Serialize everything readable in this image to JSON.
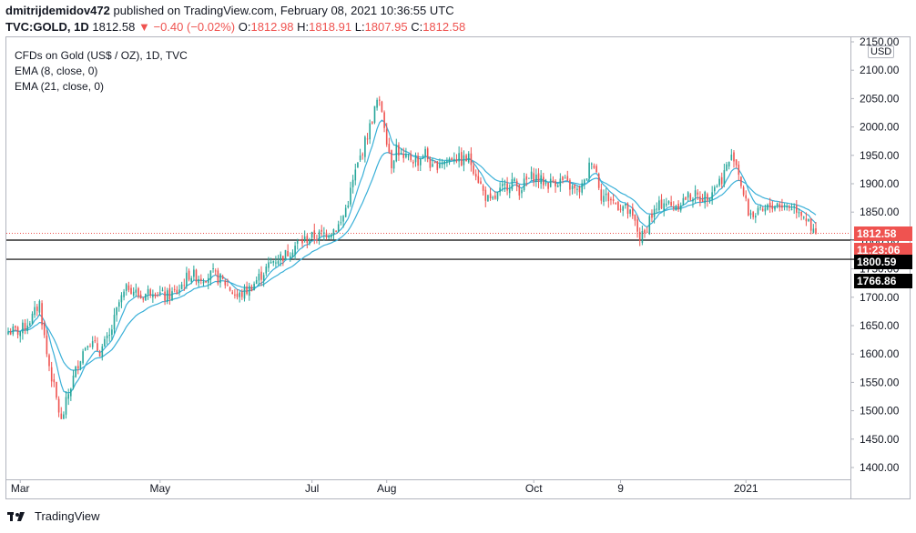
{
  "header": {
    "author": "dmitrijdemidov472",
    "published_text": "published on TradingView.com, February 08, 2021 10:36:55 UTC",
    "symbol": "TVC:GOLD, 1D",
    "last": "1812.58",
    "change_arrow": "▼",
    "change": "−0.40 (−0.02%)",
    "o_label": "O:",
    "o_value": "1812.98",
    "h_label": "H:",
    "h_value": "1818.91",
    "l_label": "L:",
    "l_value": "1807.95",
    "c_label": "C:",
    "c_value": "1812.58"
  },
  "legend": {
    "title": "CFDs on Gold (US$ / OZ), 1D, TVC",
    "ema8": "EMA (8, close, 0)",
    "ema21": "EMA (21, close, 0)"
  },
  "currency": "USD",
  "footer": {
    "brand": "TradingView"
  },
  "price_tags": {
    "last": "1812.58",
    "countdown": "11:23:06",
    "level_top": "1800.59",
    "level_bottom": "1766.86"
  },
  "colors": {
    "up": "#26a69a",
    "down": "#ef5350",
    "ema8": "#3ab0d8",
    "ema21": "#3ab0d8",
    "level": "#000000"
  },
  "chart_data": {
    "type": "candlestick",
    "title": "CFDs on Gold (US$ / OZ), 1D, TVC",
    "ylabel": "USD",
    "ylim": [
      1383,
      2155
    ],
    "y_ticks": [
      "2150.00",
      "2100.00",
      "2050.00",
      "2000.00",
      "1950.00",
      "1900.00",
      "1850.00",
      "1800.00",
      "1750.00",
      "1700.00",
      "1650.00",
      "1600.00",
      "1550.00",
      "1500.00",
      "1450.00",
      "1400.00"
    ],
    "x_ticks": [
      "Mar",
      "May",
      "Jul",
      "Aug",
      "Oct",
      "9",
      "2021"
    ],
    "x_tick_days": [
      5,
      63,
      126,
      157,
      218,
      254,
      306
    ],
    "horizontal_levels": [
      1800.59,
      1766.86
    ],
    "last_price": 1812.58,
    "anchors": [
      [
        0,
        1640
      ],
      [
        5,
        1640
      ],
      [
        10,
        1665
      ],
      [
        13,
        1690
      ],
      [
        16,
        1600
      ],
      [
        19,
        1540
      ],
      [
        22,
        1480
      ],
      [
        25,
        1530
      ],
      [
        29,
        1585
      ],
      [
        33,
        1625
      ],
      [
        38,
        1605
      ],
      [
        42,
        1630
      ],
      [
        46,
        1690
      ],
      [
        50,
        1720
      ],
      [
        55,
        1700
      ],
      [
        60,
        1715
      ],
      [
        65,
        1700
      ],
      [
        70,
        1710
      ],
      [
        75,
        1740
      ],
      [
        80,
        1735
      ],
      [
        85,
        1740
      ],
      [
        90,
        1725
      ],
      [
        95,
        1700
      ],
      [
        100,
        1715
      ],
      [
        105,
        1740
      ],
      [
        110,
        1765
      ],
      [
        115,
        1775
      ],
      [
        120,
        1795
      ],
      [
        125,
        1805
      ],
      [
        130,
        1810
      ],
      [
        135,
        1820
      ],
      [
        138,
        1830
      ],
      [
        141,
        1870
      ],
      [
        144,
        1920
      ],
      [
        147,
        1960
      ],
      [
        150,
        2000
      ],
      [
        153,
        2045
      ],
      [
        155,
        2030
      ],
      [
        157,
        1980
      ],
      [
        159,
        1935
      ],
      [
        161,
        1965
      ],
      [
        164,
        1940
      ],
      [
        167,
        1945
      ],
      [
        170,
        1940
      ],
      [
        173,
        1955
      ],
      [
        176,
        1925
      ],
      [
        179,
        1940
      ],
      [
        182,
        1940
      ],
      [
        185,
        1950
      ],
      [
        188,
        1940
      ],
      [
        191,
        1945
      ],
      [
        194,
        1920
      ],
      [
        197,
        1885
      ],
      [
        200,
        1865
      ],
      [
        203,
        1880
      ],
      [
        206,
        1895
      ],
      [
        209,
        1905
      ],
      [
        212,
        1890
      ],
      [
        215,
        1905
      ],
      [
        218,
        1915
      ],
      [
        221,
        1905
      ],
      [
        224,
        1900
      ],
      [
        227,
        1905
      ],
      [
        230,
        1905
      ],
      [
        233,
        1895
      ],
      [
        236,
        1885
      ],
      [
        239,
        1900
      ],
      [
        242,
        1945
      ],
      [
        244,
        1920
      ],
      [
        246,
        1880
      ],
      [
        249,
        1875
      ],
      [
        252,
        1865
      ],
      [
        255,
        1860
      ],
      [
        258,
        1845
      ],
      [
        260,
        1830
      ],
      [
        262,
        1805
      ],
      [
        264,
        1810
      ],
      [
        266,
        1840
      ],
      [
        269,
        1855
      ],
      [
        272,
        1870
      ],
      [
        275,
        1860
      ],
      [
        278,
        1865
      ],
      [
        281,
        1875
      ],
      [
        284,
        1880
      ],
      [
        287,
        1875
      ],
      [
        290,
        1880
      ],
      [
        293,
        1895
      ],
      [
        296,
        1910
      ],
      [
        299,
        1940
      ],
      [
        301,
        1950
      ],
      [
        303,
        1920
      ],
      [
        305,
        1880
      ],
      [
        307,
        1850
      ],
      [
        310,
        1845
      ],
      [
        313,
        1850
      ],
      [
        316,
        1860
      ],
      [
        319,
        1865
      ],
      [
        322,
        1860
      ],
      [
        325,
        1860
      ],
      [
        328,
        1855
      ],
      [
        331,
        1840
      ],
      [
        333,
        1815
      ],
      [
        335,
        1812.58
      ]
    ]
  }
}
